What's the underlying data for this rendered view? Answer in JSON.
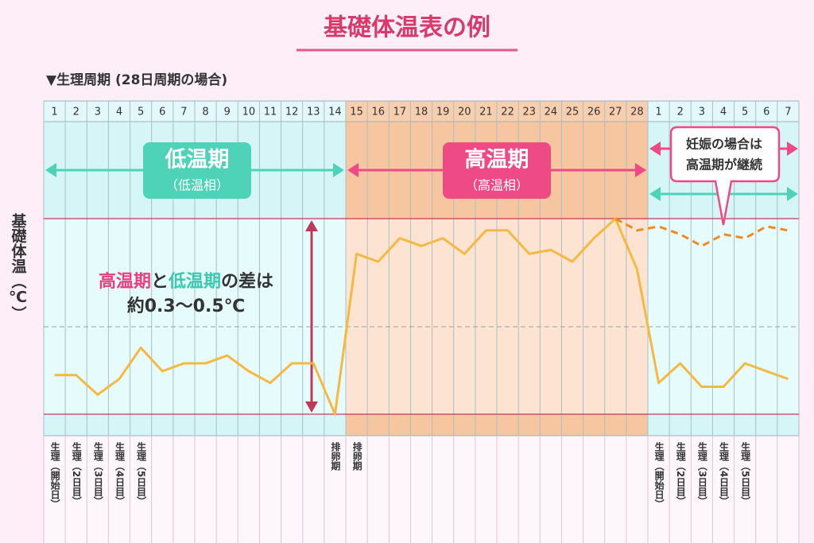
{
  "chart_data": {
    "type": "line",
    "title": "基礎体温表の例",
    "subtitle": "▼生理周期 (28日周期の場合)",
    "y_label": "基礎体温（℃）",
    "x": [
      "1",
      "2",
      "3",
      "4",
      "5",
      "6",
      "7",
      "8",
      "9",
      "10",
      "11",
      "12",
      "13",
      "14",
      "15",
      "16",
      "17",
      "18",
      "19",
      "20",
      "21",
      "22",
      "23",
      "24",
      "25",
      "26",
      "27",
      "28",
      "1",
      "2",
      "3",
      "4",
      "5",
      "6",
      "7"
    ],
    "series": [
      {
        "color": "#f5b942",
        "style": "solid",
        "values": [
          0.1,
          0.1,
          0.05,
          0.09,
          0.17,
          0.11,
          0.13,
          0.13,
          0.15,
          0.11,
          0.08,
          0.13,
          0.13,
          0.0,
          0.41,
          0.39,
          0.45,
          0.43,
          0.45,
          0.41,
          0.47,
          0.47,
          0.41,
          0.42,
          0.39,
          0.45,
          0.5,
          0.37,
          0.08,
          0.13,
          0.07,
          0.07,
          0.13,
          0.11,
          0.09
        ]
      },
      {
        "color": "#f0891f",
        "style": "dashed",
        "values": [
          null,
          null,
          null,
          null,
          null,
          null,
          null,
          null,
          null,
          null,
          null,
          null,
          null,
          null,
          null,
          null,
          null,
          null,
          null,
          null,
          null,
          null,
          null,
          null,
          null,
          null,
          0.5,
          0.47,
          0.48,
          0.46,
          0.43,
          0.46,
          0.45,
          0.48,
          0.47
        ]
      }
    ],
    "ylim": [
      0,
      0.5
    ],
    "phases": [
      {
        "label": "低温期",
        "sublabel": "（低温相）",
        "color": "#4fd3b8"
      },
      {
        "label": "高温期",
        "sublabel": "（高温相）",
        "color": "#ee4a86"
      }
    ],
    "difference_note": {
      "parts": [
        "高温期",
        "と",
        "低温期",
        "の差は"
      ],
      "line2": "約0.3～0.5℃"
    },
    "pregnancy_note": [
      "妊娠の場合は",
      "高温期が継続"
    ],
    "day_notes": [
      "生理（開始日）",
      "生理（2日目）",
      "生理（3日目）",
      "生理（4日目）",
      "生理（5日目）",
      null,
      null,
      null,
      null,
      null,
      null,
      null,
      null,
      "排卵期",
      "排卵期",
      null,
      null,
      null,
      null,
      null,
      null,
      null,
      null,
      null,
      null,
      null,
      null,
      null,
      "生理（開始日）",
      "生理（2日目）",
      "生理（3日目）",
      "生理（4日目）",
      "生理（5日目）",
      null,
      null
    ]
  }
}
